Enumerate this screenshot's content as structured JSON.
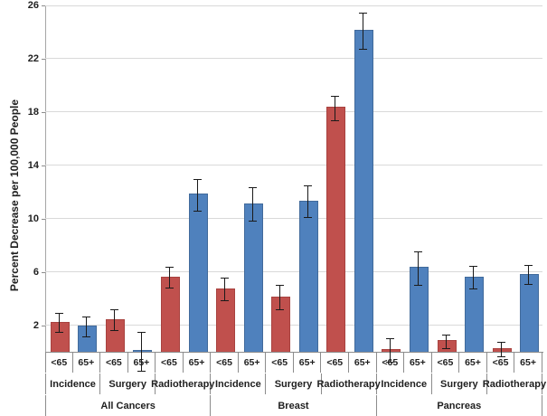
{
  "chart_data": {
    "type": "bar",
    "title": "",
    "ylabel": "Percent Decrease per 100,000 People",
    "xlabel": "",
    "ylim": [
      0,
      26
    ],
    "yticks": [
      2,
      6,
      10,
      14,
      18,
      22,
      26
    ],
    "grid": "horizontal",
    "legend": "none",
    "series": [
      {
        "name": "<65",
        "color": "#c0504d"
      },
      {
        "name": "65+",
        "color": "#4f81bd"
      }
    ],
    "error_bars": true,
    "groups": [
      {
        "label": "All Cancers",
        "subgroups": [
          {
            "label": "Incidence",
            "bars": [
              {
                "series": "<65",
                "value": 2.2,
                "error": 0.7
              },
              {
                "series": "65+",
                "value": 1.9,
                "error": 0.75
              }
            ]
          },
          {
            "label": "Surgery",
            "bars": [
              {
                "series": "<65",
                "value": 2.4,
                "error": 0.8
              },
              {
                "series": "65+",
                "value": 0.05,
                "error": 1.45
              }
            ]
          },
          {
            "label": "Radiotherapy",
            "bars": [
              {
                "series": "<65",
                "value": 5.6,
                "error": 0.75
              },
              {
                "series": "65+",
                "value": 11.8,
                "error": 1.2
              }
            ]
          }
        ]
      },
      {
        "label": "Breast",
        "subgroups": [
          {
            "label": "Incidence",
            "bars": [
              {
                "series": "<65",
                "value": 4.7,
                "error": 0.85
              },
              {
                "series": "65+",
                "value": 11.1,
                "error": 1.25
              }
            ]
          },
          {
            "label": "Surgery",
            "bars": [
              {
                "series": "<65",
                "value": 4.1,
                "error": 0.9
              },
              {
                "series": "65+",
                "value": 11.3,
                "error": 1.2
              }
            ]
          },
          {
            "label": "Radiotherapy",
            "bars": [
              {
                "series": "<65",
                "value": 18.3,
                "error": 0.9
              },
              {
                "series": "65+",
                "value": 24.1,
                "error": 1.35
              }
            ]
          }
        ]
      },
      {
        "label": "Pancreas",
        "subgroups": [
          {
            "label": "Incidence",
            "bars": [
              {
                "series": "<65",
                "value": 0.15,
                "error": 0.9
              },
              {
                "series": "65+",
                "value": 6.3,
                "error": 1.25
              }
            ]
          },
          {
            "label": "Surgery",
            "bars": [
              {
                "series": "<65",
                "value": 0.8,
                "error": 0.5
              },
              {
                "series": "65+",
                "value": 5.6,
                "error": 0.85
              }
            ]
          },
          {
            "label": "Radiotherapy",
            "bars": [
              {
                "series": "<65",
                "value": 0.2,
                "error": 0.55
              },
              {
                "series": "65+",
                "value": 5.8,
                "error": 0.7
              }
            ]
          }
        ]
      }
    ],
    "colors": {
      "bar_under65": "#c0504d",
      "bar_65plus": "#4f81bd",
      "gridline": "#d9d9d9",
      "axis": "#8c8c8c",
      "error_bar": "#1a1a1a",
      "text": "#1f1f1f"
    }
  }
}
